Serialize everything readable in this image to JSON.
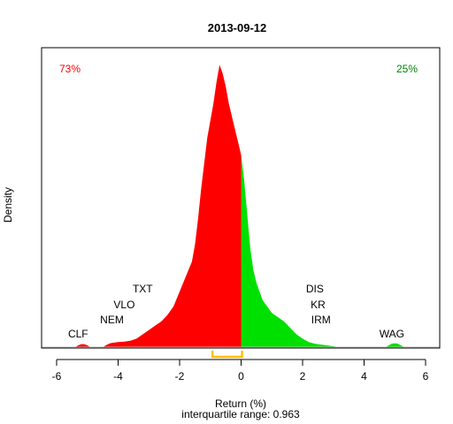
{
  "chart_data": {
    "type": "area",
    "title": "2013-09-12",
    "xlabel": "Return (%)",
    "ylabel": "Density",
    "subtitle": "interquartile range: 0.963",
    "xlim": [
      -6,
      6
    ],
    "x_ticks": [
      -6,
      -4,
      -2,
      0,
      2,
      4,
      6
    ],
    "negative_share": "73%",
    "positive_share": "25%",
    "colors": {
      "negative": "#ff0000",
      "positive": "#00e000",
      "iqr_bracket": "#ffc000",
      "baseline": "#bebebe",
      "negative_label": "#ff0000",
      "positive_label": "#008000"
    },
    "density": {
      "x": [
        -5.4,
        -5.3,
        -5.2,
        -5.1,
        -5.0,
        -4.9,
        -4.5,
        -4.4,
        -4.3,
        -4.2,
        -4.0,
        -3.8,
        -3.6,
        -3.4,
        -3.2,
        -3.0,
        -2.8,
        -2.6,
        -2.4,
        -2.2,
        -2.0,
        -1.8,
        -1.6,
        -1.5,
        -1.4,
        -1.3,
        -1.2,
        -1.1,
        -1.0,
        -0.9,
        -0.8,
        -0.7,
        -0.6,
        -0.5,
        -0.4,
        -0.3,
        -0.2,
        -0.1,
        0.0,
        0.1,
        0.2,
        0.3,
        0.4,
        0.5,
        0.6,
        0.7,
        0.8,
        0.9,
        1.0,
        1.2,
        1.4,
        1.6,
        1.8,
        2.0,
        2.2,
        2.4,
        2.6,
        2.8,
        3.0,
        3.2,
        4.7,
        4.8,
        4.9,
        5.0,
        5.1,
        5.2,
        5.3
      ],
      "y": [
        0,
        0.004,
        0.007,
        0.007,
        0.004,
        0,
        0,
        0.004,
        0.008,
        0.01,
        0.012,
        0.013,
        0.015,
        0.02,
        0.03,
        0.04,
        0.05,
        0.06,
        0.075,
        0.095,
        0.13,
        0.165,
        0.2,
        0.24,
        0.3,
        0.37,
        0.43,
        0.49,
        0.53,
        0.57,
        0.62,
        0.66,
        0.64,
        0.61,
        0.57,
        0.54,
        0.51,
        0.48,
        0.45,
        0.39,
        0.31,
        0.23,
        0.18,
        0.15,
        0.13,
        0.11,
        0.1,
        0.09,
        0.08,
        0.07,
        0.06,
        0.045,
        0.03,
        0.02,
        0.012,
        0.008,
        0.006,
        0.004,
        0.002,
        0,
        0,
        0.004,
        0.008,
        0.009,
        0.008,
        0.004,
        0
      ]
    },
    "iqr": [
      -0.93,
      0.03
    ],
    "stock_labels": [
      {
        "text": "CLF",
        "x": -5.3,
        "level": 1
      },
      {
        "text": "NEM",
        "x": -4.2,
        "level": 2
      },
      {
        "text": "VLO",
        "x": -3.8,
        "level": 3
      },
      {
        "text": "TXT",
        "x": -3.2,
        "level": 4
      },
      {
        "text": "WAG",
        "x": 4.9,
        "level": 1
      },
      {
        "text": "IRM",
        "x": 2.6,
        "level": 2
      },
      {
        "text": "KR",
        "x": 2.5,
        "level": 3
      },
      {
        "text": "DIS",
        "x": 2.4,
        "level": 4
      }
    ]
  }
}
